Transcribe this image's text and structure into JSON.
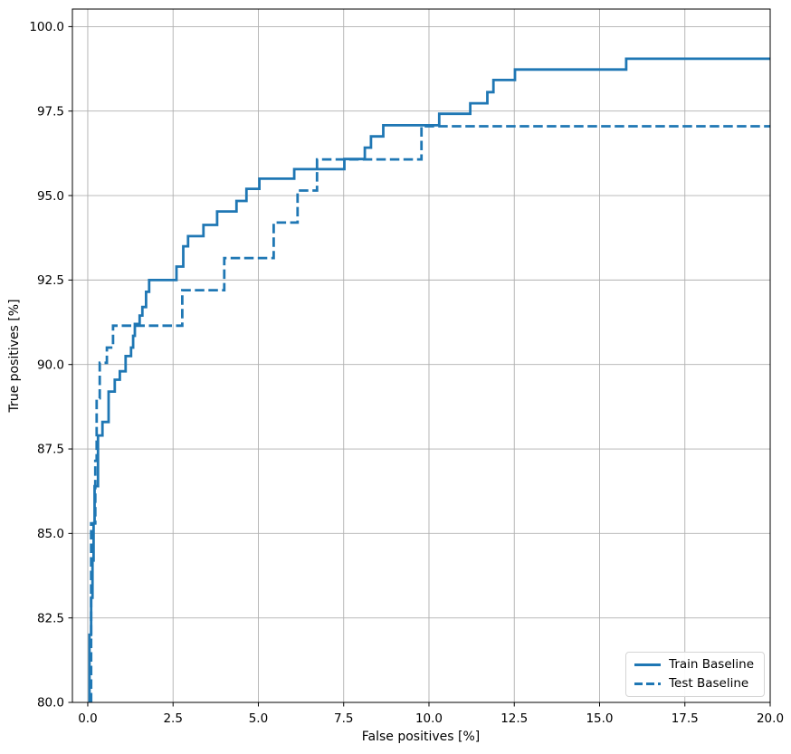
{
  "chart_data": {
    "type": "line",
    "subtype": "step-roc",
    "title": "",
    "xlabel": "False positives [%]",
    "ylabel": "True positives [%]",
    "xlim": [
      -0.45,
      20
    ],
    "ylim": [
      80,
      100.52
    ],
    "grid": true,
    "legend_position": "lower right",
    "line_color": "#1f77b4",
    "grid_color": "#b0b0b0",
    "spine_color": "#000000",
    "x_ticks": {
      "values": [
        0,
        2.5,
        5,
        7.5,
        10,
        12.5,
        15,
        17.5,
        20
      ],
      "labels": [
        "0.0",
        "2.5",
        "5.0",
        "7.5",
        "10.0",
        "12.5",
        "15.0",
        "17.5",
        "20.0"
      ]
    },
    "y_ticks": {
      "values": [
        80,
        82.5,
        85,
        87.5,
        90,
        92.5,
        95,
        97.5,
        100
      ],
      "labels": [
        "80.0",
        "82.5",
        "85.0",
        "87.5",
        "90.0",
        "92.5",
        "95.0",
        "97.5",
        "100.0"
      ]
    },
    "series": [
      {
        "name": "Train Baseline",
        "style": "solid",
        "points": [
          [
            0.05,
            80.0
          ],
          [
            0.05,
            82.0
          ],
          [
            0.1,
            82.0
          ],
          [
            0.1,
            83.1
          ],
          [
            0.14,
            83.1
          ],
          [
            0.14,
            84.2
          ],
          [
            0.17,
            84.2
          ],
          [
            0.17,
            85.3
          ],
          [
            0.2,
            85.3
          ],
          [
            0.2,
            86.4
          ],
          [
            0.3,
            86.4
          ],
          [
            0.3,
            87.9
          ],
          [
            0.43,
            87.9
          ],
          [
            0.43,
            88.3
          ],
          [
            0.61,
            88.3
          ],
          [
            0.61,
            89.2
          ],
          [
            0.79,
            89.2
          ],
          [
            0.79,
            89.55
          ],
          [
            0.94,
            89.55
          ],
          [
            0.94,
            89.8
          ],
          [
            1.11,
            89.8
          ],
          [
            1.11,
            90.25
          ],
          [
            1.27,
            90.25
          ],
          [
            1.27,
            90.5
          ],
          [
            1.33,
            90.5
          ],
          [
            1.33,
            90.85
          ],
          [
            1.38,
            90.85
          ],
          [
            1.38,
            91.2
          ],
          [
            1.52,
            91.2
          ],
          [
            1.52,
            91.45
          ],
          [
            1.6,
            91.45
          ],
          [
            1.6,
            91.7
          ],
          [
            1.71,
            91.7
          ],
          [
            1.71,
            92.15
          ],
          [
            1.8,
            92.15
          ],
          [
            1.8,
            92.5
          ],
          [
            2.6,
            92.5
          ],
          [
            2.6,
            92.9
          ],
          [
            2.8,
            92.9
          ],
          [
            2.8,
            93.5
          ],
          [
            2.94,
            93.5
          ],
          [
            2.94,
            93.8
          ],
          [
            3.39,
            93.8
          ],
          [
            3.39,
            94.13
          ],
          [
            3.79,
            94.13
          ],
          [
            3.79,
            94.53
          ],
          [
            4.36,
            94.53
          ],
          [
            4.36,
            94.84
          ],
          [
            4.65,
            94.84
          ],
          [
            4.65,
            95.2
          ],
          [
            5.03,
            95.2
          ],
          [
            5.03,
            95.5
          ],
          [
            6.05,
            95.5
          ],
          [
            6.05,
            95.78
          ],
          [
            7.52,
            95.78
          ],
          [
            7.52,
            96.08
          ],
          [
            8.12,
            96.08
          ],
          [
            8.12,
            96.42
          ],
          [
            8.3,
            96.42
          ],
          [
            8.3,
            96.75
          ],
          [
            8.66,
            96.75
          ],
          [
            8.66,
            97.08
          ],
          [
            10.3,
            97.08
          ],
          [
            10.3,
            97.42
          ],
          [
            11.21,
            97.42
          ],
          [
            11.21,
            97.73
          ],
          [
            11.71,
            97.73
          ],
          [
            11.71,
            98.06
          ],
          [
            11.89,
            98.06
          ],
          [
            11.89,
            98.42
          ],
          [
            12.52,
            98.42
          ],
          [
            12.52,
            98.73
          ],
          [
            15.78,
            98.73
          ],
          [
            15.78,
            99.05
          ],
          [
            20.0,
            99.05
          ]
        ]
      },
      {
        "name": "Test Baseline",
        "style": "dashed",
        "points": [
          [
            0.1,
            80.0
          ],
          [
            0.1,
            85.3
          ],
          [
            0.22,
            85.3
          ],
          [
            0.22,
            87.15
          ],
          [
            0.26,
            87.15
          ],
          [
            0.26,
            89.0
          ],
          [
            0.35,
            89.0
          ],
          [
            0.35,
            90.05
          ],
          [
            0.56,
            90.05
          ],
          [
            0.56,
            90.5
          ],
          [
            0.74,
            90.5
          ],
          [
            0.74,
            91.15
          ],
          [
            2.77,
            91.15
          ],
          [
            2.77,
            92.2
          ],
          [
            4.0,
            92.2
          ],
          [
            4.0,
            93.15
          ],
          [
            5.45,
            93.15
          ],
          [
            5.45,
            94.2
          ],
          [
            6.15,
            94.2
          ],
          [
            6.15,
            95.15
          ],
          [
            6.72,
            95.15
          ],
          [
            6.72,
            96.07
          ],
          [
            9.78,
            96.07
          ],
          [
            9.78,
            97.05
          ],
          [
            20.0,
            97.05
          ]
        ]
      }
    ]
  }
}
